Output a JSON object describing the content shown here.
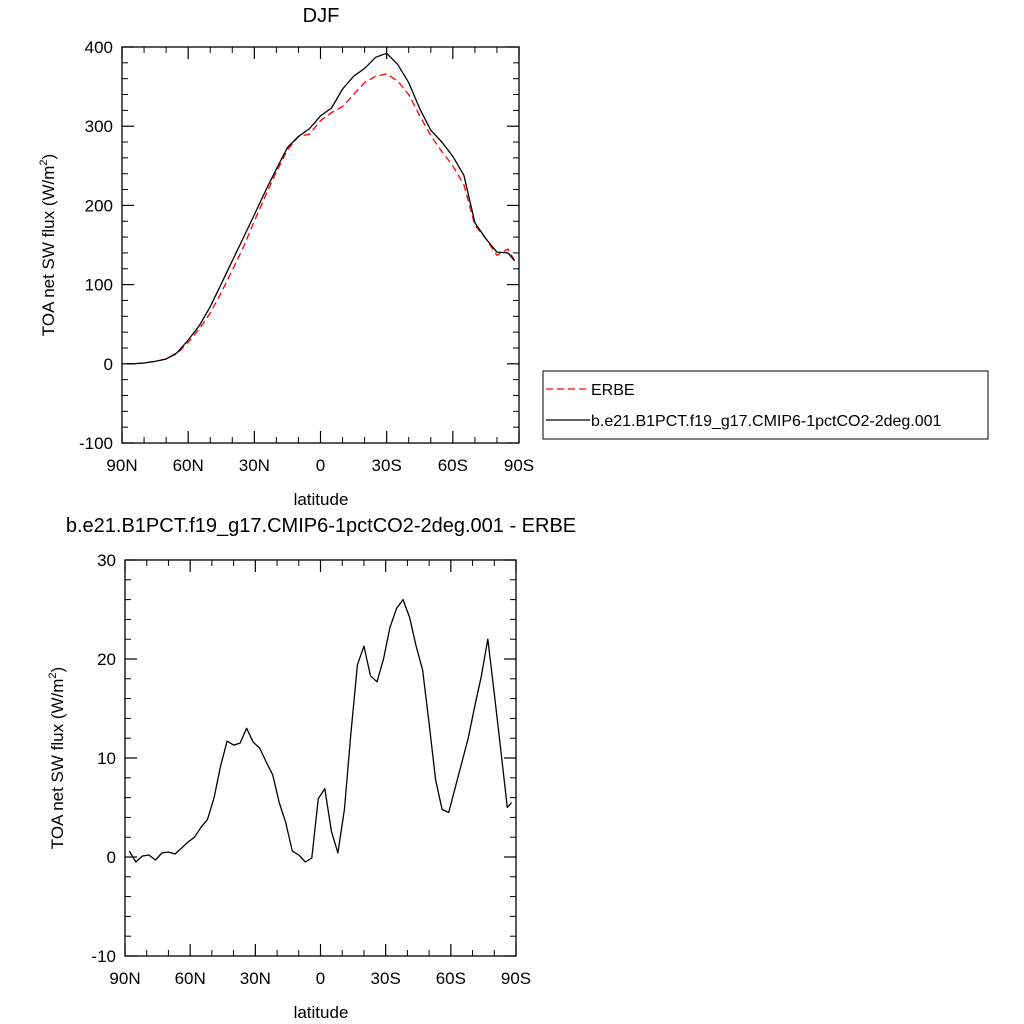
{
  "chart_data": [
    {
      "type": "line",
      "title": "DJF",
      "xlabel": "latitude",
      "ylabel_main": "TOA net SW flux (W/m",
      "ylabel_sup": "2",
      "ylabel_close": ")",
      "xlim": [
        90,
        -90
      ],
      "ylim": [
        -100,
        400
      ],
      "xticks": [
        90,
        60,
        30,
        0,
        -30,
        -60,
        -90
      ],
      "xtick_labels": [
        "90N",
        "60N",
        "30N",
        "0",
        "30S",
        "60S",
        "90S"
      ],
      "yticks": [
        -100,
        0,
        100,
        200,
        300,
        400
      ],
      "ytick_labels": [
        "-100",
        "0",
        "100",
        "200",
        "300",
        "400"
      ],
      "legend": "right",
      "series": [
        {
          "name": "ERBE",
          "color": "#ff0000",
          "dash": "dashed",
          "x": [
            88,
            85,
            80,
            75,
            70,
            65,
            60,
            55,
            50,
            45,
            40,
            35,
            30,
            25,
            20,
            15,
            10,
            5,
            0,
            -5,
            -10,
            -15,
            -20,
            -25,
            -30,
            -35,
            -40,
            -45,
            -50,
            -55,
            -60,
            -65,
            -70,
            -75,
            -80,
            -85,
            -88
          ],
          "y": [
            0,
            0,
            1,
            3,
            6,
            13,
            27,
            44,
            64,
            90,
            118,
            147,
            180,
            212,
            242,
            270,
            287,
            290,
            307,
            317,
            325,
            340,
            355,
            363,
            366,
            357,
            340,
            313,
            288,
            268,
            250,
            226,
            175,
            158,
            137,
            145,
            130
          ]
        },
        {
          "name": "b.e21.B1PCT.f19_g17.CMIP6-1pctCO2-2deg.001",
          "color": "#000000",
          "dash": "solid",
          "x": [
            88,
            85,
            80,
            75,
            70,
            65,
            60,
            55,
            50,
            45,
            40,
            35,
            30,
            25,
            20,
            15,
            10,
            5,
            0,
            -5,
            -10,
            -15,
            -20,
            -25,
            -30,
            -35,
            -40,
            -45,
            -50,
            -55,
            -60,
            -65,
            -70,
            -75,
            -80,
            -85,
            -88
          ],
          "y": [
            0,
            0,
            1,
            3,
            6,
            14,
            30,
            48,
            72,
            101,
            130,
            159,
            188,
            218,
            246,
            273,
            287,
            297,
            313,
            323,
            347,
            363,
            373,
            387,
            392,
            378,
            355,
            322,
            295,
            280,
            262,
            238,
            178,
            158,
            141,
            140,
            130
          ]
        }
      ]
    },
    {
      "type": "line",
      "title": "b.e21.B1PCT.f19_g17.CMIP6-1pctCO2-2deg.001 - ERBE",
      "xlabel": "latitude",
      "ylabel_main": "TOA net SW flux (W/m",
      "ylabel_sup": "2",
      "ylabel_close": ")",
      "xlim": [
        90,
        -90
      ],
      "ylim": [
        -10,
        30
      ],
      "xticks": [
        90,
        60,
        30,
        0,
        -30,
        -60,
        -90
      ],
      "xtick_labels": [
        "90N",
        "60N",
        "30N",
        "0",
        "30S",
        "60S",
        "90S"
      ],
      "yticks": [
        -10,
        0,
        10,
        20,
        30
      ],
      "ytick_labels": [
        "-10",
        "0",
        "10",
        "20",
        "30"
      ],
      "series": [
        {
          "color": "#000000",
          "dash": "solid",
          "x": [
            88,
            85,
            82,
            79,
            76,
            73,
            70,
            67,
            64,
            61,
            58,
            55,
            52,
            49,
            46,
            43,
            40,
            37,
            34,
            31,
            28,
            25,
            22,
            19,
            16,
            13,
            10,
            7,
            4,
            1,
            -2,
            -5,
            -8,
            -11,
            -14,
            -17,
            -20,
            -23,
            -26,
            -29,
            -32,
            -35,
            -38,
            -41,
            -44,
            -47,
            -50,
            -53,
            -56,
            -59,
            -62,
            -65,
            -68,
            -71,
            -74,
            -77,
            -80,
            -83,
            -86,
            -88
          ],
          "y": [
            0.6,
            -0.5,
            0.1,
            0.2,
            -0.3,
            0.4,
            0.5,
            0.3,
            0.9,
            1.5,
            2.0,
            3.0,
            3.8,
            6.0,
            9.2,
            11.7,
            11.3,
            11.5,
            13.0,
            11.6,
            11.0,
            9.6,
            8.3,
            5.5,
            3.5,
            0.6,
            0.2,
            -0.5,
            -0.1,
            5.9,
            6.9,
            2.6,
            0.4,
            4.8,
            12.5,
            19.4,
            21.3,
            18.3,
            17.7,
            20.0,
            23.2,
            25.1,
            26.0,
            24.2,
            21.3,
            18.9,
            13.5,
            7.8,
            4.8,
            4.5,
            7.0,
            9.5,
            12.0,
            15.2,
            18.2,
            22.0,
            16.5,
            10.8,
            5.0,
            5.5
          ]
        }
      ]
    }
  ]
}
